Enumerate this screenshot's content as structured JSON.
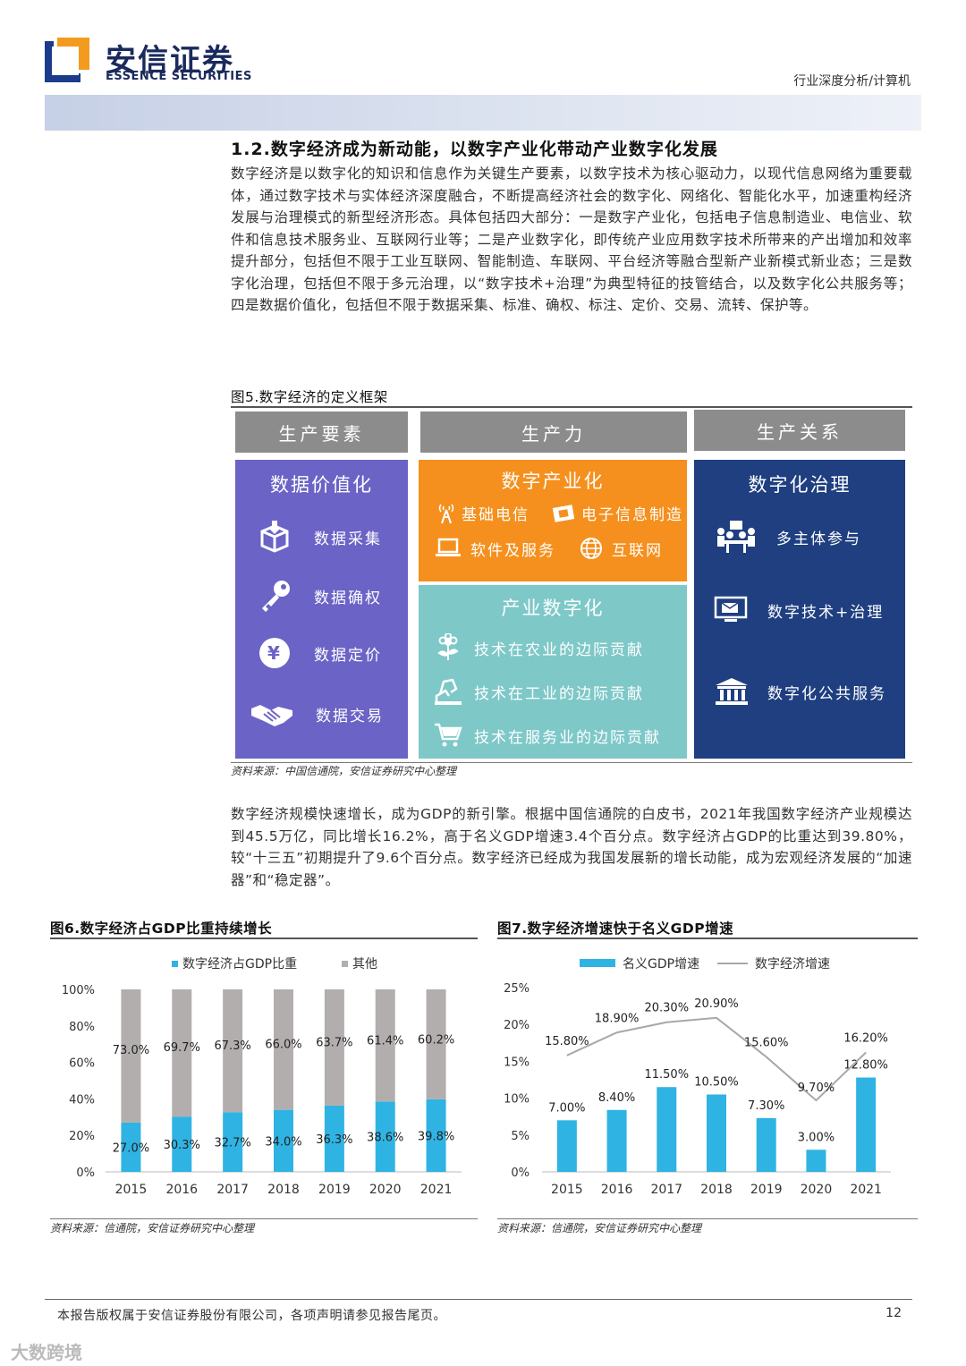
{
  "header": {
    "logo_cn": "安信证券",
    "logo_en": "ESSENCE SECURITIES",
    "category": "行业深度分析/计算机"
  },
  "section": {
    "title": "1.2.数字经济成为新动能，以数字产业化带动产业数字化发展",
    "para1": "数字经济是以数字化的知识和信息作为关键生产要素，以数字技术为核心驱动力，以现代信息网络为重要载体，通过数字技术与实体经济深度融合，不断提高经济社会的数字化、网络化、智能化水平，加速重构经济发展与治理模式的新型经济形态。具体包括四大部分：一是数字产业化，包括电子信息制造业、电信业、软件和信息技术服务业、互联网行业等；二是产业数字化，即传统产业应用数字技术所带来的产出增加和效率提升部分，包括但不限于工业互联网、智能制造、车联网、平台经济等融合型新产业新模式新业态；三是数字化治理，包括但不限于多元治理，以“数字技术+治理”为典型特征的技管结合，以及数字化公共服务等；四是数据价值化，包括但不限于数据采集、标准、确权、标注、定价、交易、流转、保护等。",
    "para2": "数字经济规模快速增长，成为GDP的新引擎。根据中国信通院的白皮书，2021年我国数字经济产业规模达到45.5万亿，同比增长16.2%，高于名义GDP增速3.4个百分点。数字经济占GDP的比重达到39.80%，较“十三五”初期提升了9.6个百分点。数字经济已经成为我国发展新的增长动能，成为宏观经济发展的“加速器”和“稳定器”。"
  },
  "figure5": {
    "title": "图5.数字经济的定义框架",
    "headers": [
      "生产要素",
      "生产力",
      "生产关系"
    ],
    "col1": {
      "title": "数据价值化",
      "items": [
        {
          "label": "数据采集",
          "icon": "box-download-icon"
        },
        {
          "label": "数据确权",
          "icon": "key-icon"
        },
        {
          "label": "数据定价",
          "icon": "yen-coin-icon"
        },
        {
          "label": "数据交易",
          "icon": "handshake-icon"
        }
      ]
    },
    "col2a": {
      "title": "数字产业化",
      "items": [
        {
          "label": "基础电信",
          "icon": "antenna-icon"
        },
        {
          "label": "电子信息制造",
          "icon": "chip-icon"
        },
        {
          "label": "软件及服务",
          "icon": "laptop-icon"
        },
        {
          "label": "互联网",
          "icon": "globe-icon"
        }
      ]
    },
    "col2b": {
      "title": "产业数字化",
      "items": [
        {
          "label": "技术在农业的边际贡献",
          "icon": "flower-icon"
        },
        {
          "label": "技术在工业的边际贡献",
          "icon": "factory-icon"
        },
        {
          "label": "技术在服务业的边际贡献",
          "icon": "cart-icon"
        }
      ]
    },
    "col3": {
      "title": "数字化治理",
      "items": [
        {
          "label": "多主体参与",
          "icon": "meeting-icon"
        },
        {
          "label": "数字技术+治理",
          "icon": "monitor-mail-icon"
        },
        {
          "label": "数字化公共服务",
          "icon": "government-building-icon"
        }
      ]
    },
    "colors": {
      "header": "#8c8c8c",
      "col1": "#6b63c6",
      "col2a": "#f5901e",
      "col2b": "#7ec8c8",
      "col3": "#1f3f80"
    },
    "source": "资料来源：中国信通院，安信证券研究中心整理"
  },
  "figure6": {
    "title": "图6.数字经济占GDP比重持续增长",
    "source": "资料来源：信通院，安信证券研究中心整理",
    "chart_data": {
      "type": "bar",
      "stacked": true,
      "categories": [
        "2015",
        "2016",
        "2017",
        "2018",
        "2019",
        "2020",
        "2021"
      ],
      "series": [
        {
          "name": "数字经济占GDP比重",
          "values": [
            27.0,
            30.3,
            32.7,
            34.0,
            36.3,
            38.6,
            39.8
          ],
          "labels": [
            "27.0%",
            "30.3%",
            "32.7%",
            "34.0%",
            "36.3%",
            "38.6%",
            "39.8%"
          ],
          "color": "#2fb3e3"
        },
        {
          "name": "其他",
          "values": [
            73.0,
            69.7,
            67.3,
            66.0,
            63.7,
            61.4,
            60.2
          ],
          "labels": [
            "73.0%",
            "69.7%",
            "67.3%",
            "66.0%",
            "63.7%",
            "61.4%",
            "60.2%"
          ],
          "color": "#b3aeae"
        }
      ],
      "yticks": [
        "0%",
        "20%",
        "40%",
        "60%",
        "80%",
        "100%"
      ],
      "ylim": [
        0,
        100
      ],
      "legend": "top"
    }
  },
  "figure7": {
    "title": "图7.数字经济增速快于名义GDP增速",
    "source": "资料来源：信通院，安信证券研究中心整理",
    "chart_data": {
      "type": "bar",
      "categories": [
        "2015",
        "2016",
        "2017",
        "2018",
        "2019",
        "2020",
        "2021"
      ],
      "series": [
        {
          "name": "名义GDP增速",
          "type": "bar",
          "values": [
            7.0,
            8.4,
            11.5,
            10.5,
            7.3,
            3.0,
            12.8
          ],
          "labels": [
            "7.00%",
            "8.40%",
            "11.50%",
            "10.50%",
            "7.30%",
            "3.00%",
            "12.80%"
          ],
          "color": "#2fb3e3"
        },
        {
          "name": "数字经济增速",
          "type": "line",
          "values": [
            15.8,
            18.9,
            20.3,
            20.9,
            15.6,
            9.7,
            16.2
          ],
          "labels": [
            "15.80%",
            "18.90%",
            "20.30%",
            "20.90%",
            "15.60%",
            "9.70%",
            "16.20%"
          ],
          "color": "#a8a8a8"
        }
      ],
      "yticks": [
        "0%",
        "5%",
        "10%",
        "15%",
        "20%",
        "25%"
      ],
      "ylim": [
        0,
        25
      ],
      "legend": "top"
    }
  },
  "footer": {
    "text": "本报告版权属于安信证券股份有限公司，各项声明请参见报告尾页。",
    "page": "12",
    "watermark": "大数跨境"
  }
}
